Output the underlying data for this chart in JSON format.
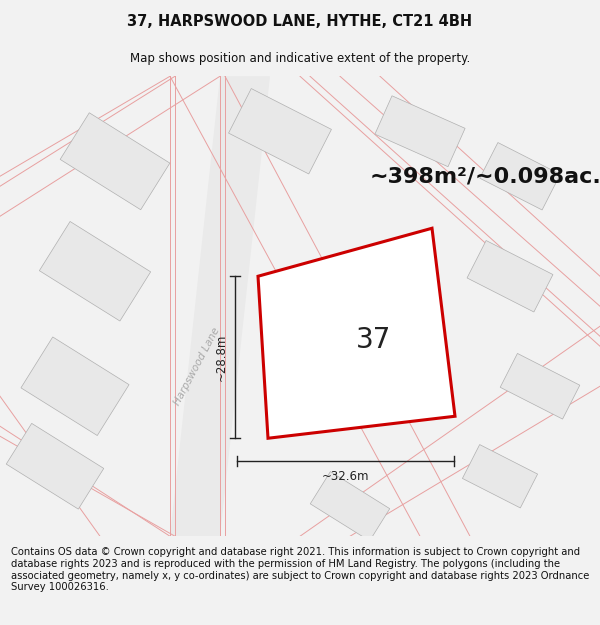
{
  "title_line1": "37, HARPSWOOD LANE, HYTHE, CT21 4BH",
  "title_line2": "Map shows position and indicative extent of the property.",
  "area_text": "~398m²/~0.098ac.",
  "property_number": "37",
  "dim_horizontal": "~32.6m",
  "dim_vertical": "~28.8m",
  "road_label": "Harpswood Lane",
  "footer_text": "Contains OS data © Crown copyright and database right 2021. This information is subject to Crown copyright and database rights 2023 and is reproduced with the permission of HM Land Registry. The polygons (including the associated geometry, namely x, y co-ordinates) are subject to Crown copyright and database rights 2023 Ordnance Survey 100026316.",
  "bg_color": "#f2f2f2",
  "map_bg": "#ffffff",
  "property_edge": "#cc0000",
  "building_fill": "#e8e8e8",
  "building_edge": "#b0b0b0",
  "road_line_color": "#e8a0a0",
  "road_area_color": "#ebebeb",
  "title_fontsize": 10.5,
  "subtitle_fontsize": 8.5,
  "area_fontsize": 16,
  "number_fontsize": 20,
  "footer_fontsize": 7.2,
  "dim_fontsize": 8.5
}
